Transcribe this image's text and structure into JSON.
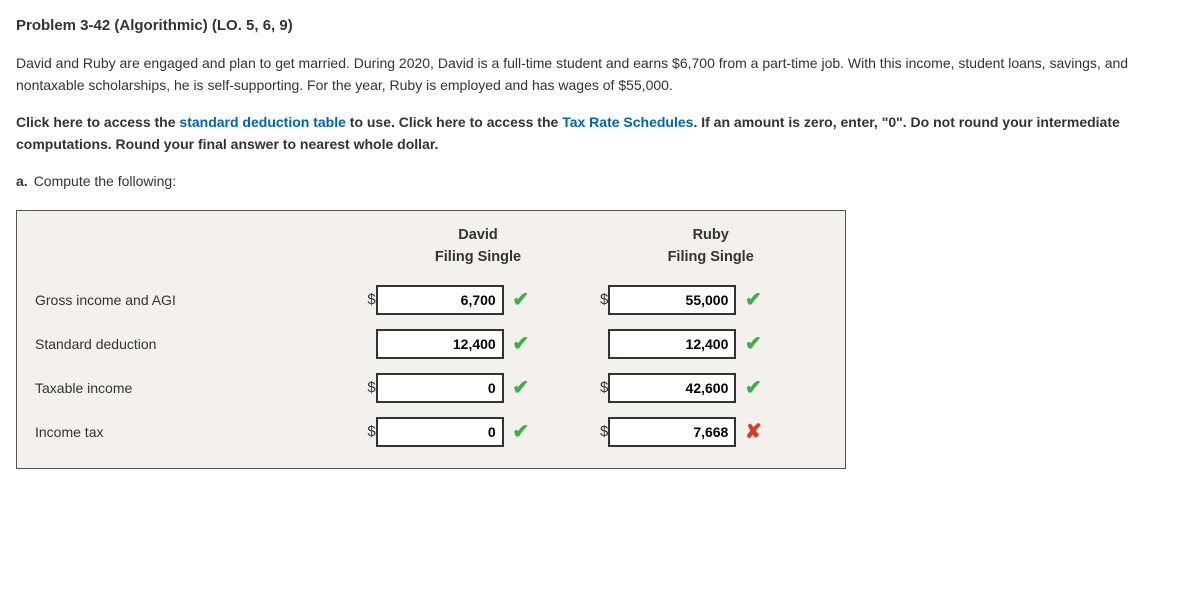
{
  "title": "Problem 3-42 (Algorithmic) (LO. 5, 6, 9)",
  "para1": "David and Ruby are engaged and plan to get married. During 2020, David is a full-time student and earns $6,700 from a part-time job. With this income, student loans, savings, and nontaxable scholarships, he is self-supporting. For the year, Ruby is employed and has wages of $55,000.",
  "para2_parts": {
    "a": "Click here to access the ",
    "link1": "standard deduction table",
    "b": " to use. Click here to access the ",
    "link2": "Tax Rate Schedules",
    "c": ". If an amount is zero, enter, \"0\". Do not round your intermediate computations. Round your final answer to nearest whole dollar."
  },
  "question": {
    "letter": "a.",
    "text": "Compute the following:"
  },
  "table": {
    "col1": {
      "name": "David",
      "sub": "Filing Single"
    },
    "col2": {
      "name": "Ruby",
      "sub": "Filing Single"
    },
    "rows": [
      {
        "label": "Gross income and AGI",
        "d_sym": "$",
        "d_val": "6,700",
        "d_mark": "check",
        "r_sym": "$",
        "r_val": "55,000",
        "r_mark": "check"
      },
      {
        "label": "Standard deduction",
        "d_sym": "",
        "d_val": "12,400",
        "d_mark": "check",
        "r_sym": "",
        "r_val": "12,400",
        "r_mark": "check"
      },
      {
        "label": "Taxable income",
        "d_sym": "$",
        "d_val": "0",
        "d_mark": "check",
        "r_sym": "$",
        "r_val": "42,600",
        "r_mark": "check"
      },
      {
        "label": "Income tax",
        "d_sym": "$",
        "d_val": "0",
        "d_mark": "check",
        "r_sym": "$",
        "r_val": "7,668",
        "r_mark": "cross"
      }
    ]
  },
  "marks": {
    "check": "✔",
    "cross": "✘"
  },
  "colors": {
    "link": "#0066a6",
    "check": "#3fae49",
    "cross": "#d83a2b",
    "box_bg": "#f4f1ec",
    "box_border": "#555"
  }
}
